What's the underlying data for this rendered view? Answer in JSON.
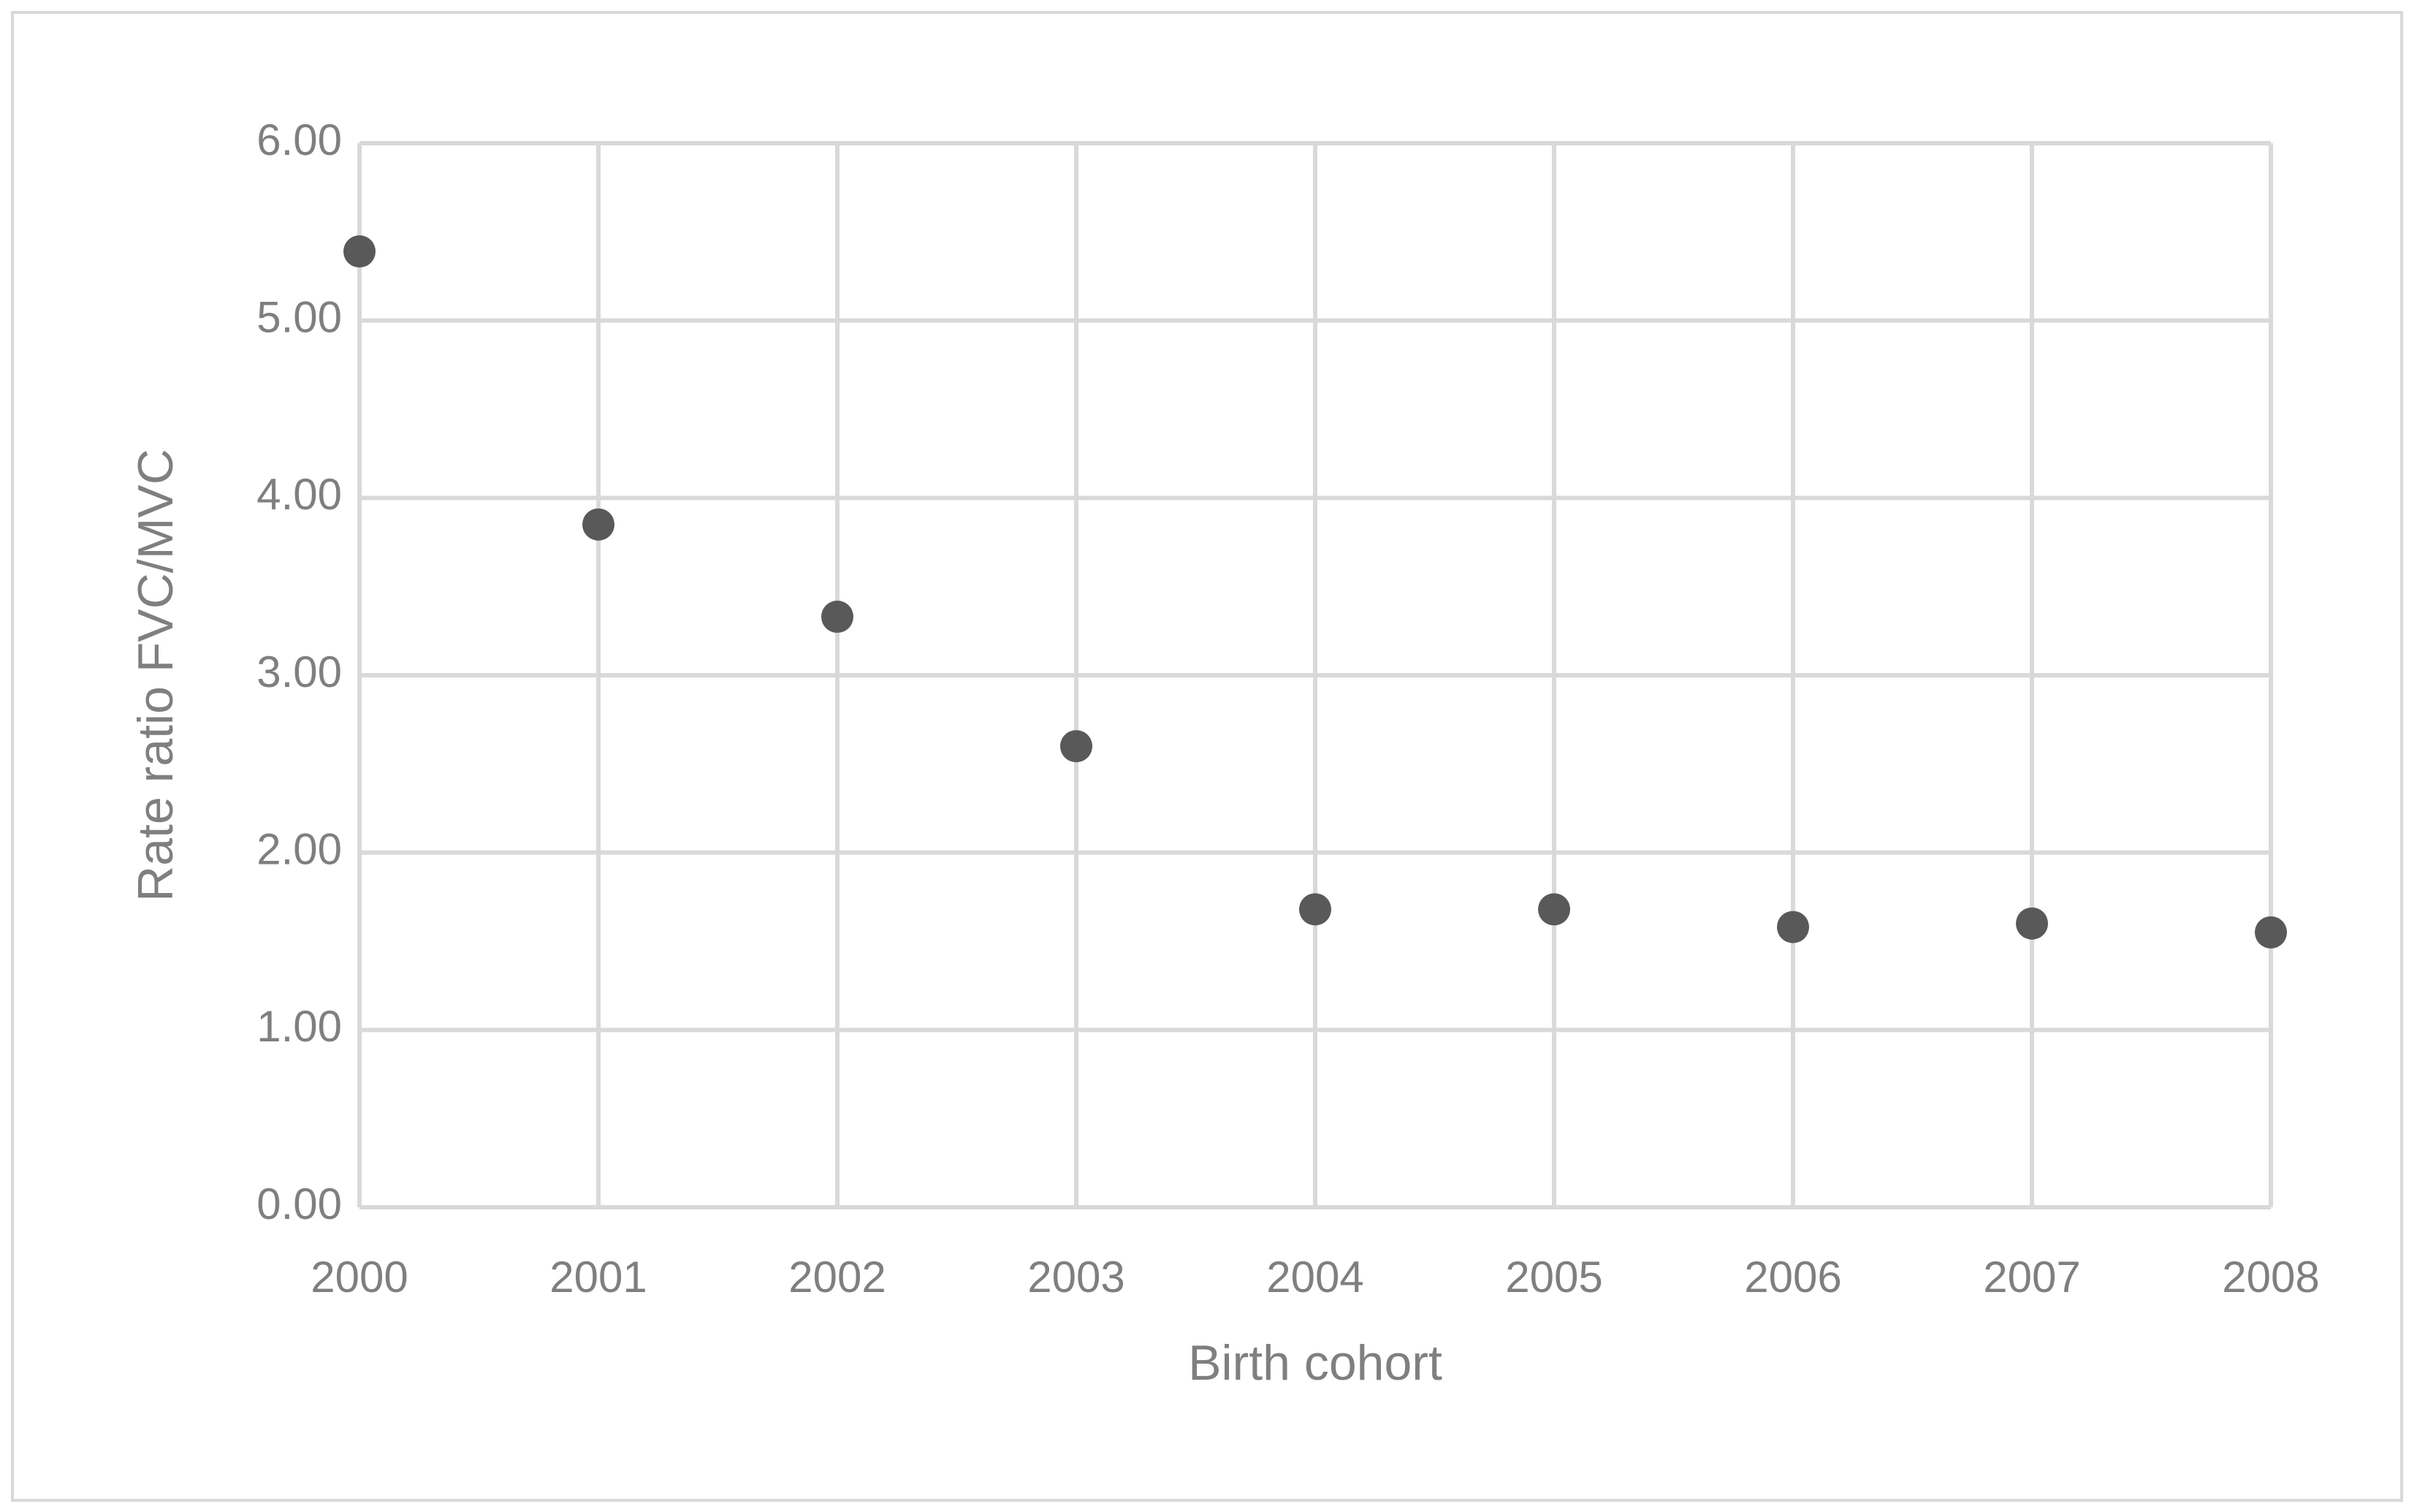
{
  "chart_data": {
    "type": "scatter",
    "x_label": "Birth cohort",
    "y_label": "Rate ratio FVC/MVC",
    "x": [
      2000,
      2001,
      2002,
      2003,
      2004,
      2005,
      2006,
      2007,
      2008
    ],
    "values": [
      5.39,
      3.85,
      3.33,
      2.6,
      1.68,
      1.68,
      1.58,
      1.6,
      1.55
    ],
    "color": "#595959",
    "xlim": [
      2000,
      2008
    ],
    "xticks": [
      2000,
      2001,
      2002,
      2003,
      2004,
      2005,
      2006,
      2007,
      2008
    ],
    "ylim": [
      0,
      6
    ],
    "yticks": [
      {
        "value": 0,
        "label": "0.00"
      },
      {
        "value": 1,
        "label": "1.00"
      },
      {
        "value": 2,
        "label": "2.00"
      },
      {
        "value": 3,
        "label": "3.00"
      },
      {
        "value": 4,
        "label": "4.00"
      },
      {
        "value": 5,
        "label": "5.00"
      },
      {
        "value": 6,
        "label": "6.00"
      }
    ],
    "grid": true
  }
}
